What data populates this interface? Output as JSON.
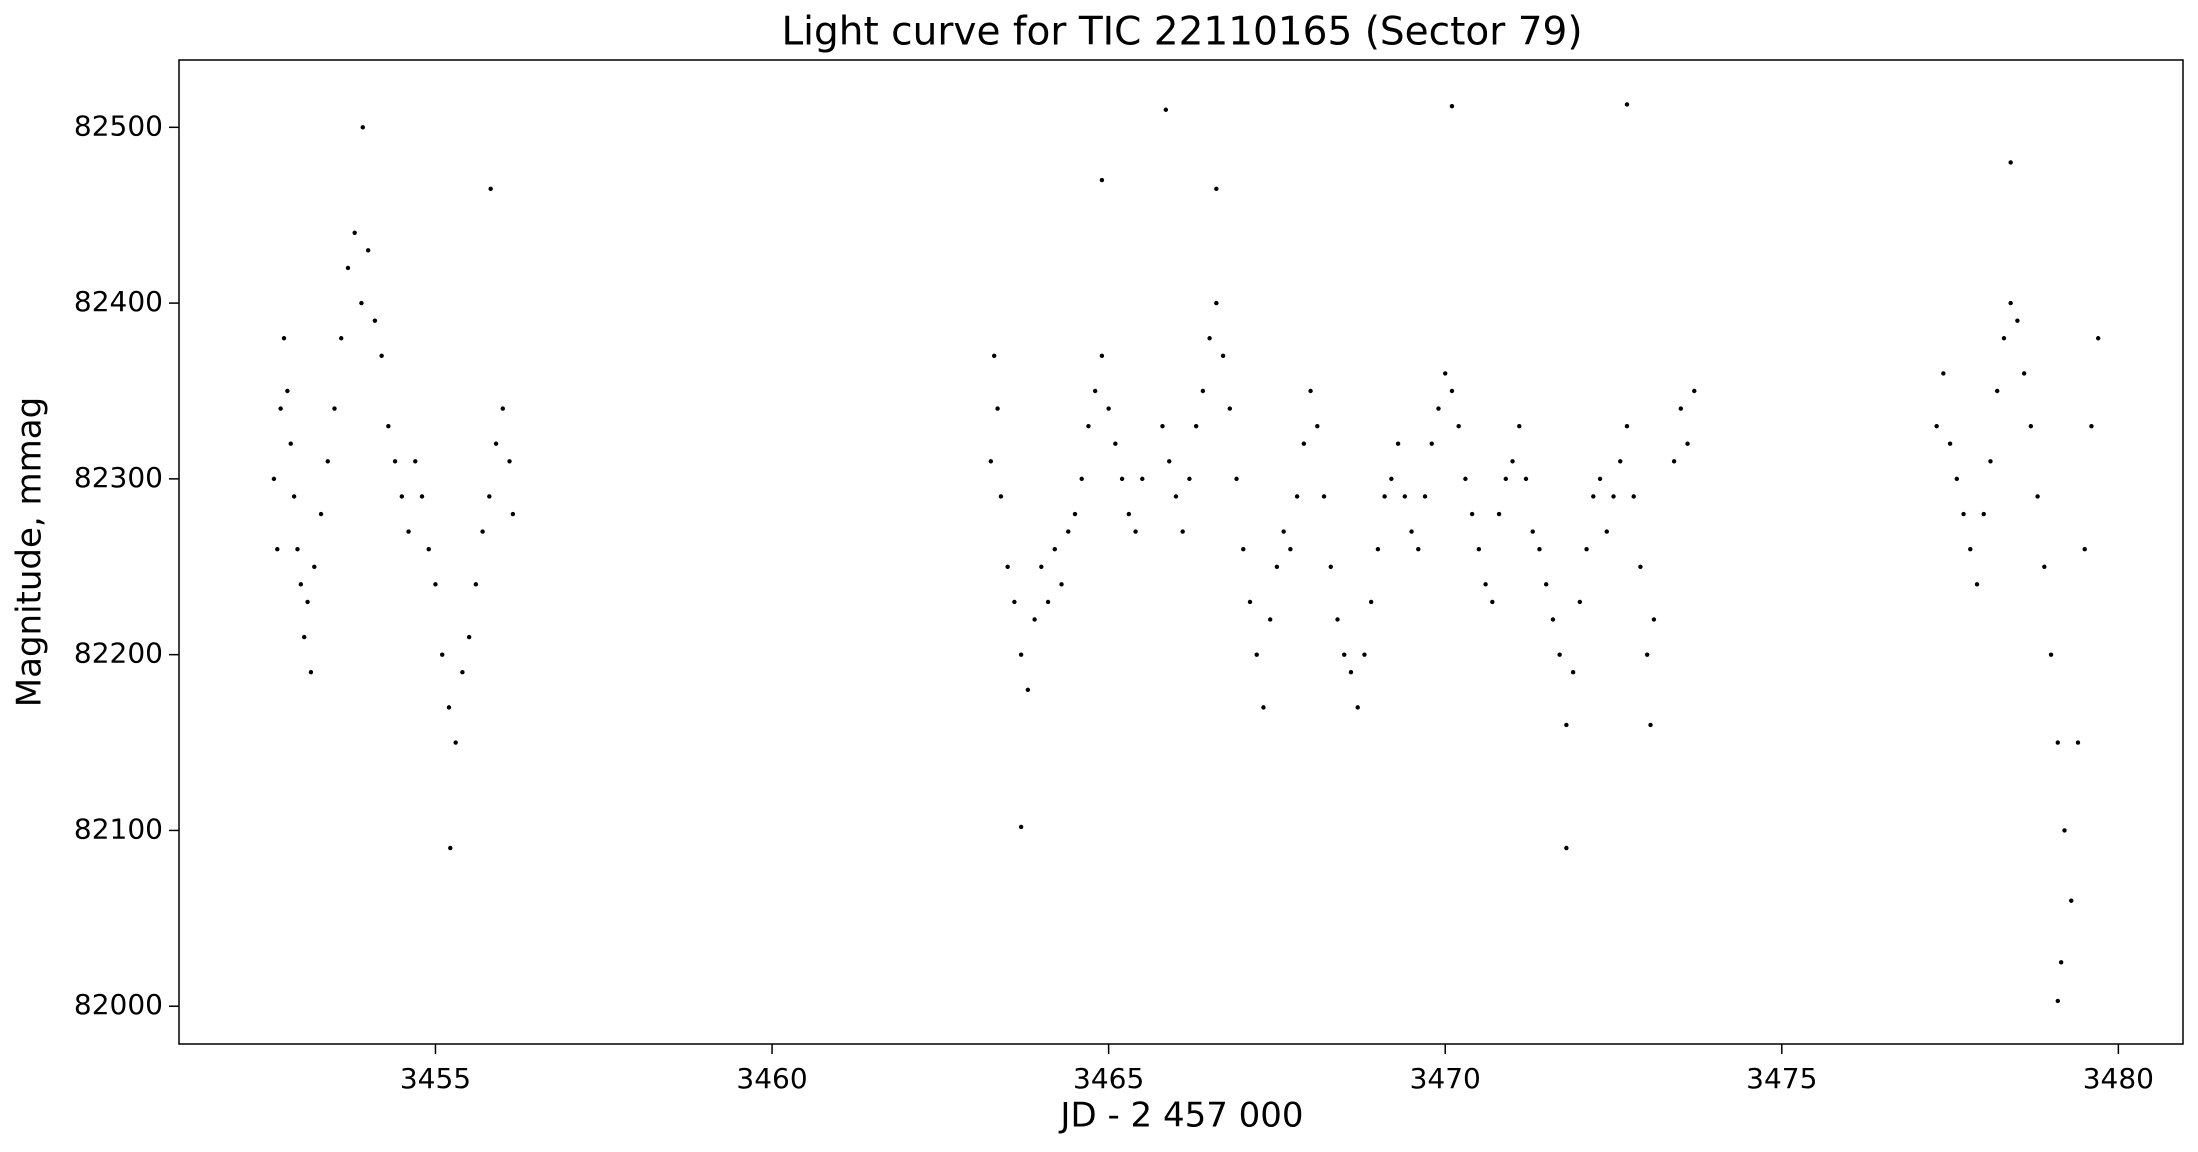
{
  "chart_data": {
    "type": "scatter",
    "title": "Light curve for TIC 22110165 (Sector 79)",
    "x_label": "JD - 2 457 000",
    "y_label": "Magnitude, mmag",
    "color": "#000000",
    "xlim": [
      3451.19,
      3480.96
    ],
    "ylim": [
      81978.5,
      82538.3
    ],
    "xticks": [
      3455,
      3460,
      3465,
      3470,
      3475,
      3480
    ],
    "yticks": [
      82000,
      82100,
      82200,
      82300,
      82400,
      82500
    ],
    "x": [
      3452.6,
      3452.65,
      3452.7,
      3452.75,
      3452.8,
      3452.85,
      3452.9,
      3452.95,
      3453,
      3453.05,
      3453.1,
      3453.15,
      3453.2,
      3453.3,
      3453.4,
      3453.5,
      3453.6,
      3453.7,
      3453.8,
      3453.9,
      3454,
      3454.1,
      3454.2,
      3454.3,
      3454.4,
      3454.5,
      3454.6,
      3454.7,
      3454.8,
      3454.9,
      3455,
      3455.1,
      3455.2,
      3455.3,
      3455.4,
      3455.5,
      3455.6,
      3455.7,
      3455.8,
      3455.9,
      3456,
      3456.1,
      3456.15,
      3453.92,
      3455.22,
      3455.82,
      3463.25,
      3463.3,
      3463.35,
      3463.4,
      3463.5,
      3463.6,
      3463.7,
      3463.8,
      3463.9,
      3464,
      3464.1,
      3464.2,
      3464.3,
      3464.4,
      3464.5,
      3464.6,
      3464.7,
      3464.8,
      3464.9,
      3465,
      3465.1,
      3465.2,
      3465.3,
      3465.4,
      3465.5,
      3465.8,
      3465.9,
      3466,
      3466.1,
      3466.2,
      3466.3,
      3466.4,
      3466.5,
      3466.6,
      3466.7,
      3466.8,
      3466.9,
      3467,
      3467.1,
      3467.2,
      3467.3,
      3467.4,
      3467.5,
      3467.6,
      3467.7,
      3467.8,
      3467.9,
      3468,
      3468.1,
      3468.2,
      3468.3,
      3468.4,
      3468.5,
      3468.6,
      3468.7,
      3468.8,
      3468.9,
      3469,
      3469.1,
      3469.2,
      3469.3,
      3469.4,
      3469.5,
      3469.6,
      3469.7,
      3469.8,
      3469.9,
      3470,
      3470.1,
      3470.2,
      3470.3,
      3470.4,
      3470.5,
      3470.6,
      3470.7,
      3470.8,
      3470.9,
      3471,
      3471.1,
      3471.2,
      3471.3,
      3471.4,
      3471.5,
      3471.6,
      3471.7,
      3471.8,
      3471.9,
      3472,
      3472.1,
      3472.2,
      3472.3,
      3472.4,
      3472.5,
      3472.6,
      3472.7,
      3472.8,
      3472.9,
      3473,
      3473.05,
      3473.1,
      3473.4,
      3473.5,
      3473.6,
      3473.7,
      3465.85,
      3470.1,
      3472.7,
      3464.9,
      3466.6,
      3463.7,
      3471.8,
      3477.3,
      3477.4,
      3477.5,
      3477.6,
      3477.7,
      3477.8,
      3477.9,
      3478,
      3478.1,
      3478.2,
      3478.3,
      3478.4,
      3478.5,
      3478.6,
      3478.7,
      3478.8,
      3478.9,
      3479,
      3479.1,
      3479.2,
      3479.3,
      3479.4,
      3479.5,
      3479.6,
      3479.7,
      3479.1,
      3478.4,
      3479.15
    ],
    "values": [
      82300,
      82260,
      82340,
      82380,
      82350,
      82320,
      82290,
      82260,
      82240,
      82210,
      82230,
      82190,
      82250,
      82280,
      82310,
      82340,
      82380,
      82420,
      82440,
      82400,
      82430,
      82390,
      82370,
      82330,
      82310,
      82290,
      82270,
      82310,
      82290,
      82260,
      82240,
      82200,
      82170,
      82150,
      82190,
      82210,
      82240,
      82270,
      82290,
      82320,
      82340,
      82310,
      82280,
      82500,
      82090,
      82465,
      82310,
      82370,
      82340,
      82290,
      82250,
      82230,
      82200,
      82180,
      82220,
      82250,
      82230,
      82260,
      82240,
      82270,
      82280,
      82300,
      82330,
      82350,
      82370,
      82340,
      82320,
      82300,
      82280,
      82270,
      82300,
      82330,
      82310,
      82290,
      82270,
      82300,
      82330,
      82350,
      82380,
      82400,
      82370,
      82340,
      82300,
      82260,
      82230,
      82200,
      82170,
      82220,
      82250,
      82270,
      82260,
      82290,
      82320,
      82350,
      82330,
      82290,
      82250,
      82220,
      82200,
      82190,
      82170,
      82200,
      82230,
      82260,
      82290,
      82300,
      82320,
      82290,
      82270,
      82260,
      82290,
      82320,
      82340,
      82360,
      82350,
      82330,
      82300,
      82280,
      82260,
      82240,
      82230,
      82280,
      82300,
      82310,
      82330,
      82300,
      82270,
      82260,
      82240,
      82220,
      82200,
      82160,
      82190,
      82230,
      82260,
      82290,
      82300,
      82270,
      82290,
      82310,
      82330,
      82290,
      82250,
      82200,
      82160,
      82220,
      82310,
      82340,
      82320,
      82350,
      82510,
      82512,
      82513,
      82470,
      82465,
      82102,
      82090,
      82330,
      82360,
      82320,
      82300,
      82280,
      82260,
      82240,
      82280,
      82310,
      82350,
      82380,
      82400,
      82390,
      82360,
      82330,
      82290,
      82250,
      82200,
      82150,
      82100,
      82060,
      82150,
      82260,
      82330,
      82380,
      82003,
      82480,
      82025
    ]
  }
}
